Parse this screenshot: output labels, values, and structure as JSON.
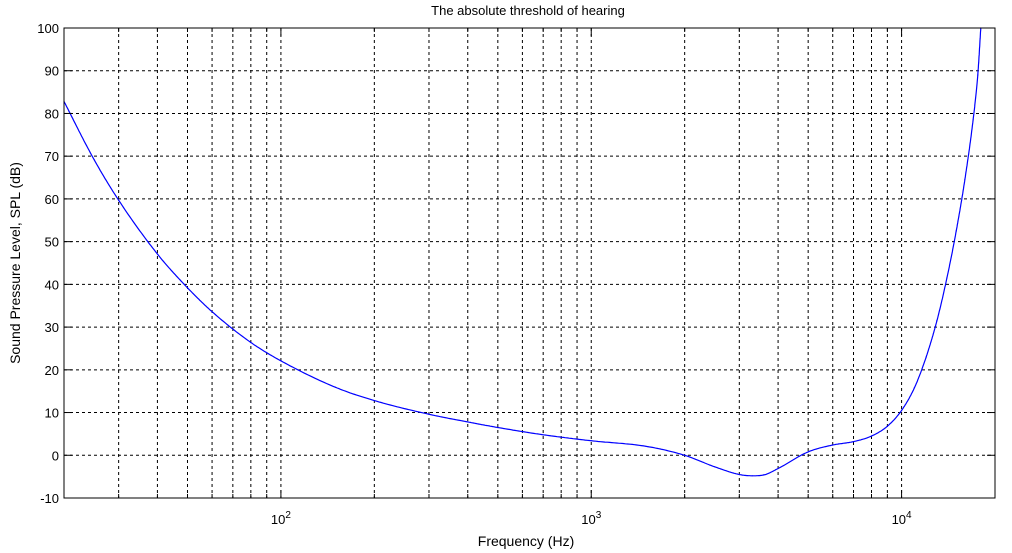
{
  "chart_data": {
    "type": "line",
    "title": "The absolute threshold of hearing",
    "xlabel": "Frequency (Hz)",
    "ylabel": "Sound Pressure Level, SPL (dB)",
    "xscale": "log",
    "xlim": [
      20,
      20000
    ],
    "ylim": [
      -10,
      100
    ],
    "grid": true,
    "y_ticks": [
      -10,
      0,
      10,
      20,
      30,
      40,
      50,
      60,
      70,
      80,
      90,
      100
    ],
    "y_tick_labels": [
      "-10",
      "0",
      "10",
      "20",
      "30",
      "40",
      "50",
      "60",
      "70",
      "80",
      "90",
      "100"
    ],
    "x_major_ticks": [
      {
        "value": 100,
        "base": "10",
        "exp": "2"
      },
      {
        "value": 1000,
        "base": "10",
        "exp": "3"
      },
      {
        "value": 10000,
        "base": "10",
        "exp": "4"
      }
    ],
    "series": [
      {
        "color": "#0000ff",
        "x": [
          20,
          25,
          30,
          40,
          50,
          60,
          80,
          100,
          150,
          200,
          300,
          400,
          500,
          700,
          1000,
          1500,
          2000,
          2500,
          3000,
          3300,
          3600,
          4000,
          5000,
          6000,
          7000,
          8000,
          9000,
          10000,
          11000,
          12000,
          13000,
          14000,
          15000,
          16000,
          17000,
          17600,
          18000
        ],
        "y": [
          82.8,
          69.2,
          59.7,
          47.1,
          39.2,
          33.6,
          26.4,
          22.1,
          15.9,
          12.8,
          9.6,
          7.8,
          6.5,
          4.8,
          3.4,
          2.1,
          0.0,
          -2.7,
          -4.5,
          -4.8,
          -4.6,
          -3.1,
          0.8,
          2.4,
          3.2,
          4.5,
          6.8,
          10.5,
          15.8,
          23.0,
          31.5,
          41.5,
          52.5,
          64.6,
          78.5,
          89.0,
          100.0
        ]
      }
    ]
  }
}
